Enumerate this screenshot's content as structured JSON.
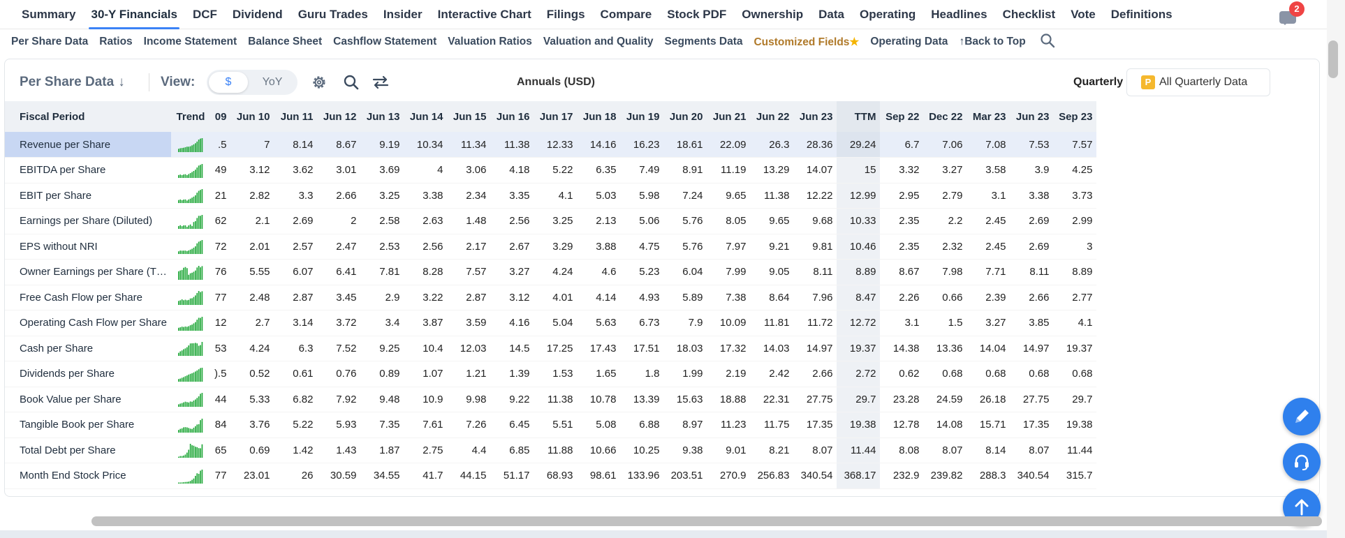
{
  "top_nav": {
    "tabs": [
      {
        "label": "Summary"
      },
      {
        "label": "30-Y Financials",
        "active": true
      },
      {
        "label": "DCF"
      },
      {
        "label": "Dividend"
      },
      {
        "label": "Guru Trades"
      },
      {
        "label": "Insider"
      },
      {
        "label": "Interactive Chart"
      },
      {
        "label": "Filings"
      },
      {
        "label": "Compare"
      },
      {
        "label": "Stock PDF"
      },
      {
        "label": "Ownership"
      },
      {
        "label": "Data"
      },
      {
        "label": "Operating"
      },
      {
        "label": "Headlines"
      },
      {
        "label": "Checklist"
      },
      {
        "label": "Vote"
      },
      {
        "label": "Definitions"
      }
    ],
    "chat_badge": "2"
  },
  "sub_nav": {
    "links": [
      {
        "label": "Per Share Data"
      },
      {
        "label": "Ratios"
      },
      {
        "label": "Income Statement"
      },
      {
        "label": "Balance Sheet"
      },
      {
        "label": "Cashflow Statement"
      },
      {
        "label": "Valuation Ratios"
      },
      {
        "label": "Valuation and Quality"
      },
      {
        "label": "Segments Data"
      },
      {
        "label": "Customized Fields",
        "custom": true
      },
      {
        "label": "Operating Data"
      },
      {
        "label": "↑Back to Top"
      }
    ]
  },
  "toolbar": {
    "title": "Per Share Data",
    "view_label": "View:",
    "toggle_dollar": "$",
    "toggle_yoy": "YoY",
    "annuals_label": "Annuals (USD)",
    "quarterly_label": "Quarterly",
    "all_quarterly_badge": "P",
    "all_quarterly_label": "All Quarterly Data"
  },
  "table": {
    "label_header": "Fiscal Period",
    "trend_header": "Trend",
    "columns": [
      "09",
      "Jun 10",
      "Jun 11",
      "Jun 12",
      "Jun 13",
      "Jun 14",
      "Jun 15",
      "Jun 16",
      "Jun 17",
      "Jun 18",
      "Jun 19",
      "Jun 20",
      "Jun 21",
      "Jun 22",
      "Jun 23",
      "TTM",
      "Sep 22",
      "Dec 22",
      "Mar 23",
      "Jun 23",
      "Sep 23"
    ],
    "rows": [
      {
        "label": "Revenue per Share",
        "values": [
          ".5",
          "7",
          "8.14",
          "8.67",
          "9.19",
          "10.34",
          "11.34",
          "11.38",
          "12.33",
          "14.16",
          "16.23",
          "18.61",
          "22.09",
          "26.3",
          "28.36",
          "29.24",
          "6.7",
          "7.06",
          "7.08",
          "7.53",
          "7.57"
        ]
      },
      {
        "label": "EBITDA per Share",
        "values": [
          "49",
          "3.12",
          "3.62",
          "3.01",
          "3.69",
          "4",
          "3.06",
          "4.18",
          "5.22",
          "6.35",
          "7.49",
          "8.91",
          "11.19",
          "13.29",
          "14.07",
          "15",
          "3.32",
          "3.27",
          "3.58",
          "3.9",
          "4.25"
        ]
      },
      {
        "label": "EBIT per Share",
        "values": [
          "21",
          "2.82",
          "3.3",
          "2.66",
          "3.25",
          "3.38",
          "2.34",
          "3.35",
          "4.1",
          "5.03",
          "5.98",
          "7.24",
          "9.65",
          "11.38",
          "12.22",
          "12.99",
          "2.95",
          "2.79",
          "3.1",
          "3.38",
          "3.73"
        ]
      },
      {
        "label": "Earnings per Share (Diluted)",
        "values": [
          "62",
          "2.1",
          "2.69",
          "2",
          "2.58",
          "2.63",
          "1.48",
          "2.56",
          "3.25",
          "2.13",
          "5.06",
          "5.76",
          "8.05",
          "9.65",
          "9.68",
          "10.33",
          "2.35",
          "2.2",
          "2.45",
          "2.69",
          "2.99"
        ]
      },
      {
        "label": "EPS without NRI",
        "values": [
          "72",
          "2.01",
          "2.57",
          "2.47",
          "2.53",
          "2.56",
          "2.17",
          "2.67",
          "3.29",
          "3.88",
          "4.75",
          "5.76",
          "7.97",
          "9.21",
          "9.81",
          "10.46",
          "2.35",
          "2.32",
          "2.45",
          "2.69",
          "3"
        ]
      },
      {
        "label": "Owner Earnings per Share (T…",
        "values": [
          "76",
          "5.55",
          "6.07",
          "6.41",
          "7.81",
          "8.28",
          "7.57",
          "3.27",
          "4.24",
          "4.6",
          "5.23",
          "6.04",
          "7.99",
          "9.05",
          "8.11",
          "8.89",
          "8.67",
          "7.98",
          "7.71",
          "8.11",
          "8.89"
        ]
      },
      {
        "label": "Free Cash Flow per Share",
        "values": [
          "77",
          "2.48",
          "2.87",
          "3.45",
          "2.9",
          "3.22",
          "2.87",
          "3.12",
          "4.01",
          "4.14",
          "4.93",
          "5.89",
          "7.38",
          "8.64",
          "7.96",
          "8.47",
          "2.26",
          "0.66",
          "2.39",
          "2.66",
          "2.77"
        ]
      },
      {
        "label": "Operating Cash Flow per Share",
        "values": [
          "12",
          "2.7",
          "3.14",
          "3.72",
          "3.4",
          "3.87",
          "3.59",
          "4.16",
          "5.04",
          "5.63",
          "6.73",
          "7.9",
          "10.09",
          "11.81",
          "11.72",
          "12.72",
          "3.1",
          "1.5",
          "3.27",
          "3.85",
          "4.1"
        ]
      },
      {
        "label": "Cash per Share",
        "values": [
          "53",
          "4.24",
          "6.3",
          "7.52",
          "9.25",
          "10.4",
          "12.03",
          "14.5",
          "17.25",
          "17.43",
          "17.51",
          "18.03",
          "17.32",
          "14.03",
          "14.97",
          "19.37",
          "14.38",
          "13.36",
          "14.04",
          "14.97",
          "19.37"
        ]
      },
      {
        "label": "Dividends per Share",
        "values": [
          ").5",
          "0.52",
          "0.61",
          "0.76",
          "0.89",
          "1.07",
          "1.21",
          "1.39",
          "1.53",
          "1.65",
          "1.8",
          "1.99",
          "2.19",
          "2.42",
          "2.66",
          "2.72",
          "0.62",
          "0.68",
          "0.68",
          "0.68",
          "0.68"
        ]
      },
      {
        "label": "Book Value per Share",
        "values": [
          "44",
          "5.33",
          "6.82",
          "7.92",
          "9.48",
          "10.9",
          "9.98",
          "9.22",
          "11.38",
          "10.78",
          "13.39",
          "15.63",
          "18.88",
          "22.31",
          "27.75",
          "29.7",
          "23.28",
          "24.59",
          "26.18",
          "27.75",
          "29.7"
        ]
      },
      {
        "label": "Tangible Book per Share",
        "values": [
          "84",
          "3.76",
          "5.22",
          "5.93",
          "7.35",
          "7.61",
          "7.26",
          "6.45",
          "5.51",
          "5.08",
          "6.88",
          "8.97",
          "11.23",
          "11.75",
          "17.35",
          "19.38",
          "12.78",
          "14.08",
          "15.71",
          "17.35",
          "19.38"
        ]
      },
      {
        "label": "Total Debt per Share",
        "values": [
          "65",
          "0.69",
          "1.42",
          "1.43",
          "1.87",
          "2.75",
          "4.4",
          "6.85",
          "11.88",
          "10.66",
          "10.25",
          "9.38",
          "9.01",
          "8.21",
          "8.07",
          "11.44",
          "8.08",
          "8.07",
          "8.14",
          "8.07",
          "11.44"
        ]
      },
      {
        "label": "Month End Stock Price",
        "values": [
          "77",
          "23.01",
          "26",
          "30.59",
          "34.55",
          "41.7",
          "44.15",
          "51.17",
          "68.93",
          "98.61",
          "133.96",
          "203.51",
          "270.9",
          "256.83",
          "340.54",
          "368.17",
          "232.9",
          "239.82",
          "288.3",
          "340.54",
          "315.7"
        ]
      }
    ]
  },
  "colors": {
    "accent": "#3b82f6",
    "spark": "#22a83a",
    "badge": "#ef4444",
    "fab": "#2f80ed"
  }
}
